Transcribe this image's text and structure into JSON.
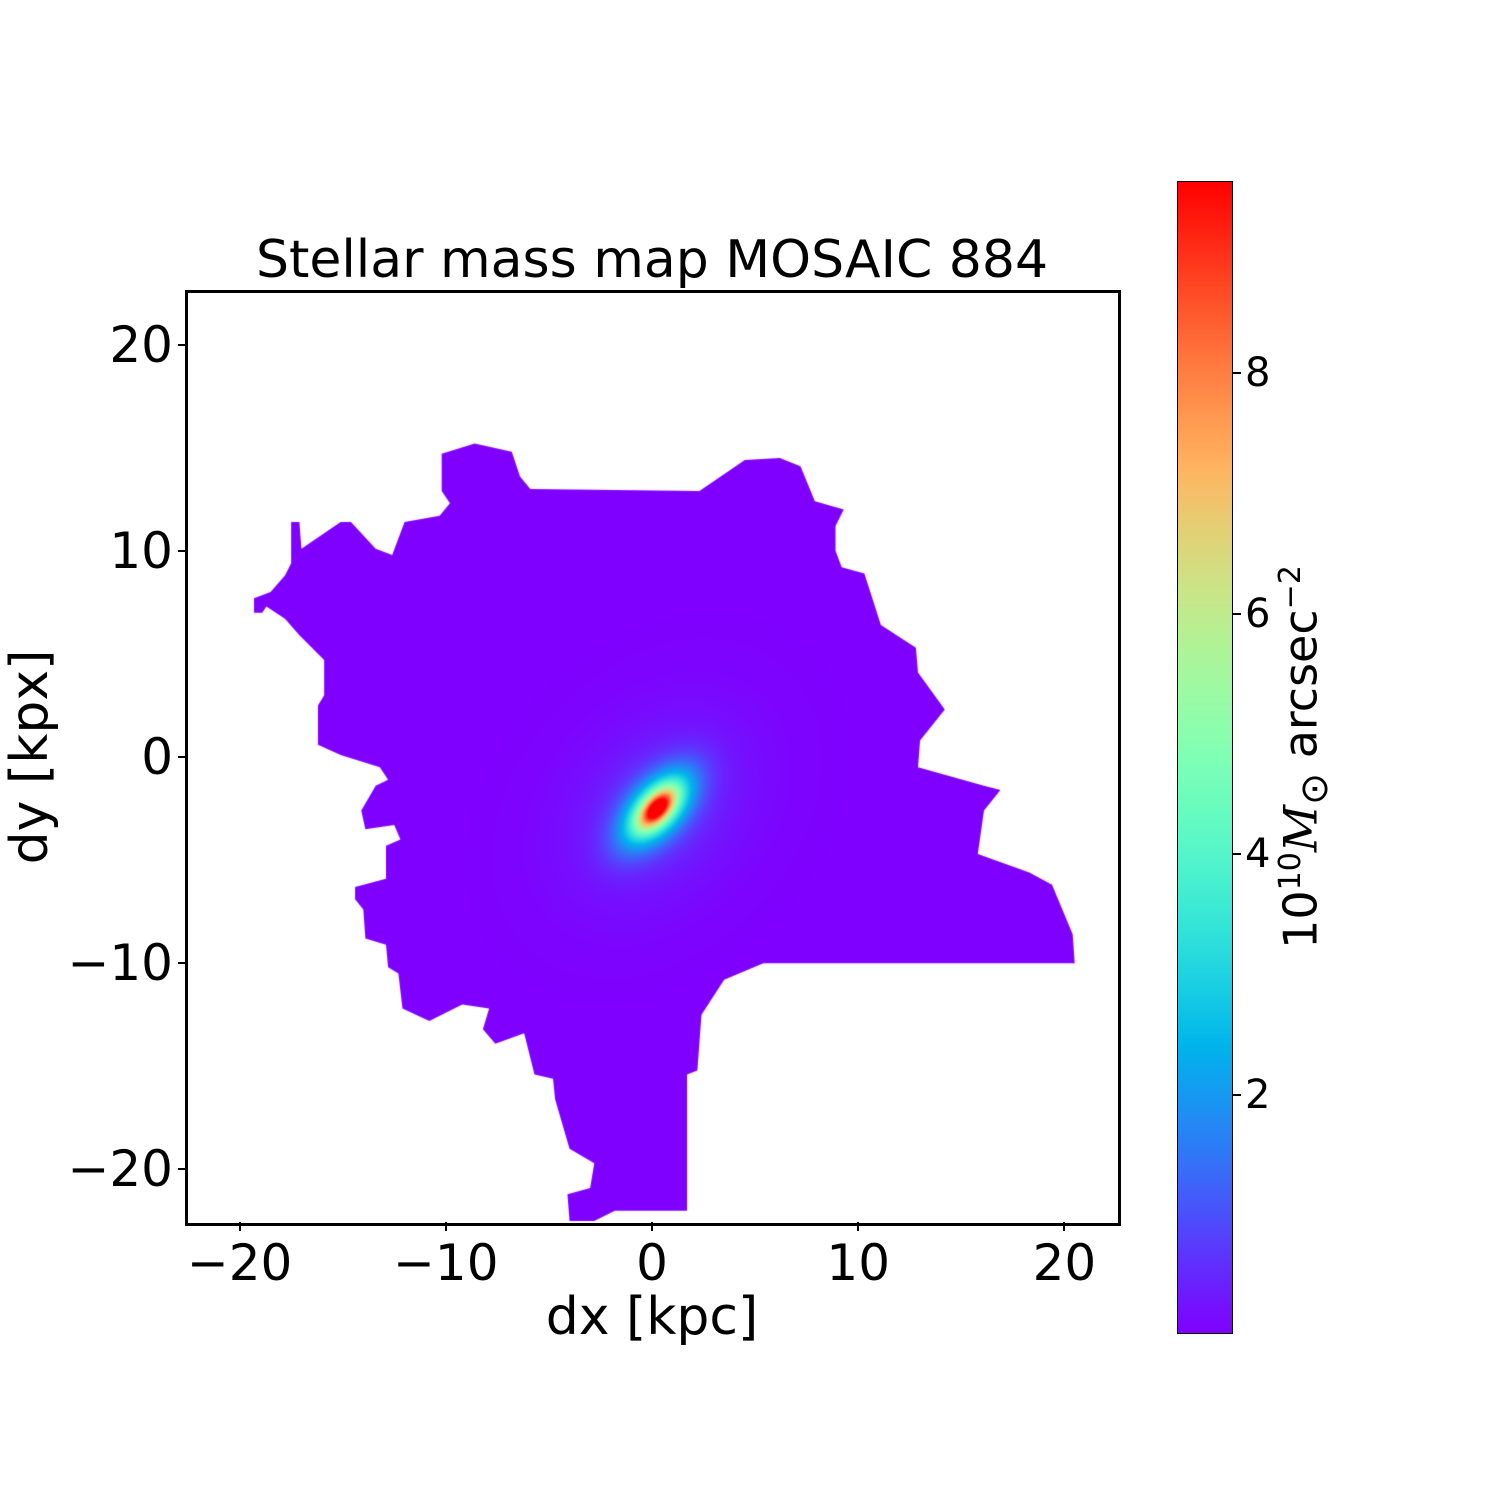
{
  "chart_data": {
    "type": "heatmap",
    "title": "Stellar mass map MOSAIC 884",
    "xlabel": "dx [kpc]",
    "ylabel": "dy [kpx]",
    "xlim": [
      -22.55,
      22.55
    ],
    "ylim": [
      -22.55,
      22.55
    ],
    "xticks": [
      -20,
      -10,
      0,
      10,
      20
    ],
    "xtick_labels": [
      "−20",
      "−10",
      "0",
      "10",
      "20"
    ],
    "yticks": [
      -20,
      -10,
      0,
      10,
      20
    ],
    "ytick_labels": [
      "−20",
      "−10",
      "0",
      "10",
      "20"
    ],
    "grid": false,
    "colormap": "rainbow",
    "colorbar": {
      "label_prefix": "10",
      "label_exp": "10",
      "label_symbol": "M",
      "label_sub": "⊙",
      "label_unit": " arcsec",
      "label_unit_exp": "−2",
      "range": [
        0.01,
        9.6
      ],
      "ticks": [
        2,
        4,
        6,
        8
      ],
      "tick_labels": [
        "2",
        "4",
        "6",
        "8"
      ]
    },
    "peak": {
      "dx": 0.25,
      "dy": -2.5,
      "value": 9.6
    },
    "mask_outline_kpc": [
      [
        -19.3,
        7.0
      ],
      [
        -19.3,
        7.7
      ],
      [
        -18.5,
        8.0
      ],
      [
        -17.8,
        8.8
      ],
      [
        -17.5,
        9.4
      ],
      [
        -17.5,
        11.4
      ],
      [
        -17.1,
        11.4
      ],
      [
        -17.0,
        10.1
      ],
      [
        -15.1,
        11.4
      ],
      [
        -14.6,
        11.4
      ],
      [
        -13.4,
        10.1
      ],
      [
        -12.6,
        9.8
      ],
      [
        -12.0,
        11.4
      ],
      [
        -10.3,
        11.7
      ],
      [
        -9.8,
        12.3
      ],
      [
        -10.2,
        12.9
      ],
      [
        -10.2,
        14.7
      ],
      [
        -8.6,
        15.2
      ],
      [
        -6.8,
        14.8
      ],
      [
        -6.4,
        13.6
      ],
      [
        -5.9,
        13.0
      ],
      [
        2.3,
        12.9
      ],
      [
        4.5,
        14.4
      ],
      [
        6.2,
        14.5
      ],
      [
        7.2,
        14.1
      ],
      [
        7.9,
        12.4
      ],
      [
        9.3,
        12.0
      ],
      [
        8.9,
        11.2
      ],
      [
        8.9,
        10.0
      ],
      [
        9.2,
        9.2
      ],
      [
        10.3,
        8.9
      ],
      [
        11.1,
        6.4
      ],
      [
        12.8,
        5.3
      ],
      [
        12.9,
        4.1
      ],
      [
        14.2,
        2.3
      ],
      [
        13.0,
        0.8
      ],
      [
        12.9,
        -0.5
      ],
      [
        16.1,
        -1.4
      ],
      [
        16.9,
        -1.6
      ],
      [
        16.1,
        -2.6
      ],
      [
        15.8,
        -4.7
      ],
      [
        18.3,
        -5.6
      ],
      [
        19.4,
        -6.2
      ],
      [
        20.4,
        -8.6
      ],
      [
        20.5,
        -10.0
      ],
      [
        5.4,
        -10.0
      ],
      [
        3.5,
        -10.8
      ],
      [
        2.4,
        -12.5
      ],
      [
        2.2,
        -15.2
      ],
      [
        1.7,
        -15.4
      ],
      [
        1.7,
        -22.0
      ],
      [
        -1.8,
        -22.0
      ],
      [
        -2.8,
        -22.5
      ],
      [
        -4.0,
        -22.5
      ],
      [
        -4.1,
        -21.2
      ],
      [
        -3.0,
        -20.9
      ],
      [
        -2.8,
        -19.7
      ],
      [
        -4.0,
        -19.0
      ],
      [
        -4.7,
        -16.6
      ],
      [
        -4.8,
        -15.6
      ],
      [
        -5.7,
        -15.4
      ],
      [
        -6.2,
        -13.4
      ],
      [
        -7.6,
        -13.9
      ],
      [
        -8.2,
        -13.2
      ],
      [
        -7.9,
        -12.2
      ],
      [
        -9.2,
        -12.0
      ],
      [
        -10.8,
        -12.8
      ],
      [
        -12.1,
        -12.2
      ],
      [
        -12.3,
        -10.5
      ],
      [
        -12.8,
        -10.2
      ],
      [
        -12.9,
        -9.1
      ],
      [
        -13.9,
        -8.8
      ],
      [
        -14.0,
        -7.4
      ],
      [
        -14.4,
        -6.9
      ],
      [
        -14.4,
        -6.3
      ],
      [
        -12.9,
        -5.9
      ],
      [
        -12.9,
        -4.3
      ],
      [
        -12.2,
        -4.0
      ],
      [
        -12.5,
        -3.3
      ],
      [
        -13.9,
        -3.5
      ],
      [
        -14.1,
        -2.6
      ],
      [
        -13.4,
        -1.4
      ],
      [
        -12.8,
        -1.1
      ],
      [
        -13.2,
        -0.5
      ],
      [
        -15.1,
        0.1
      ],
      [
        -16.2,
        0.6
      ],
      [
        -16.2,
        2.5
      ],
      [
        -15.9,
        3.0
      ],
      [
        -15.9,
        4.7
      ],
      [
        -17.1,
        5.9
      ],
      [
        -17.8,
        6.7
      ],
      [
        -18.7,
        7.3
      ],
      [
        -18.9,
        7.0
      ]
    ]
  }
}
